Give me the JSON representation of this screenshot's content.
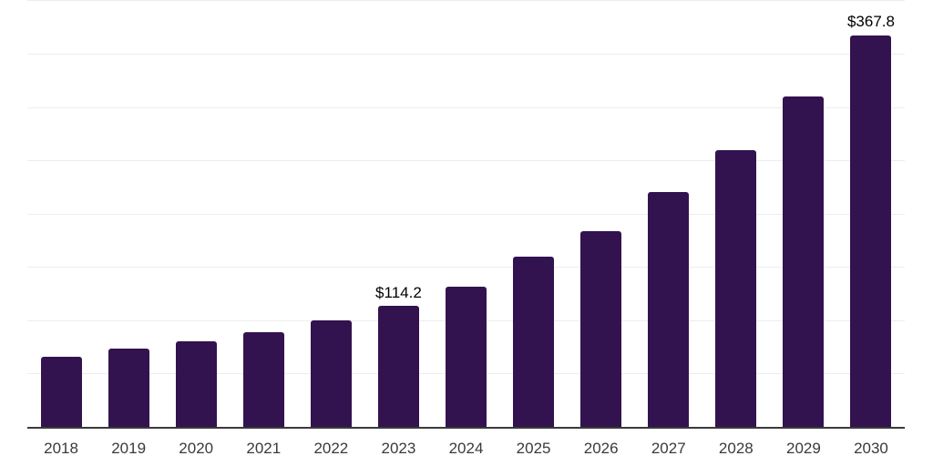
{
  "chart_data": {
    "type": "bar",
    "title": "",
    "xlabel": "",
    "ylabel": "",
    "categories": [
      "2018",
      "2019",
      "2020",
      "2021",
      "2022",
      "2023",
      "2024",
      "2025",
      "2026",
      "2027",
      "2028",
      "2029",
      "2030"
    ],
    "values": [
      66.3,
      74.2,
      81.0,
      89.5,
      100.8,
      114.2,
      132.1,
      160.1,
      184.8,
      221.3,
      260.7,
      310.4,
      367.8
    ],
    "data_labels": {
      "2023": "$114.2",
      "2030": "$367.8"
    },
    "ylim": [
      0,
      400
    ],
    "gridline_step": 50,
    "grid": true,
    "legend": false,
    "y_axis_labels_visible": false,
    "colors": {
      "bar": "#331250",
      "axis_line": "#3a3a3a",
      "gridline": "#ededed",
      "tick_label": "#3a3a3a",
      "data_label": "#000000",
      "background": "#ffffff"
    }
  }
}
